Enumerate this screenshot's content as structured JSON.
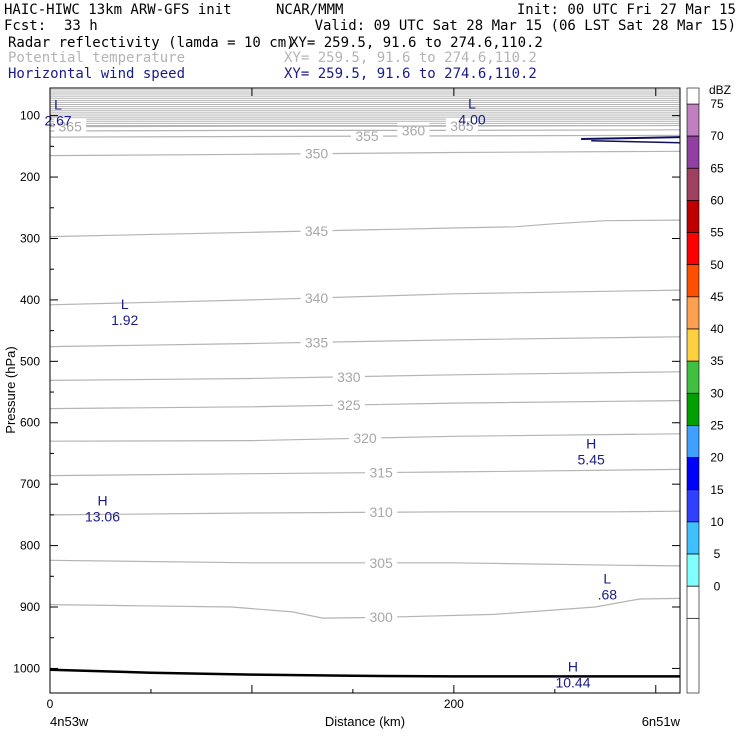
{
  "header": {
    "title": "HAIC-HIWC 13km ARW-GFS init",
    "org": "NCAR/MMM",
    "init": "Init: 00 UTC Fri 27 Mar 15",
    "fcst_label": "Fcst:",
    "fcst_value": "33 h",
    "valid": "Valid: 09 UTC Sat 28 Mar 15 (06 LST Sat 28 Mar 15)",
    "fields": [
      {
        "name": "Radar reflectivity (lamda = 10 cm)",
        "xy": "XY= 259.5, 91.6 to 274.6,110.2",
        "color": "#000000"
      },
      {
        "name": "Potential temperature",
        "xy": "XY= 259.5, 91.6 to 274.6,110.2",
        "color": "#b4b4b4"
      },
      {
        "name": "Horizontal wind speed",
        "xy": "XY= 259.5, 91.6 to 274.6,110.2",
        "color": "#1a1a8a"
      }
    ]
  },
  "chart_data": {
    "type": "line",
    "xlabel": "Distance (km)",
    "ylabel": "Pressure (hPa)",
    "xlim": [
      0,
      312
    ],
    "ylim": [
      1040,
      55
    ],
    "x_ticks": [
      0,
      100,
      200,
      300
    ],
    "x_tick_labels": [
      "0",
      "",
      "200",
      ""
    ],
    "y_ticks": [
      100,
      200,
      300,
      400,
      500,
      600,
      700,
      800,
      900,
      1000
    ],
    "x_end_labels": {
      "left": "4n53w",
      "right": "6n51w"
    },
    "theta_contours": [
      {
        "label": "300",
        "label_x": 164,
        "points": [
          [
            0,
            896
          ],
          [
            45,
            898
          ],
          [
            90,
            900
          ],
          [
            120,
            908
          ],
          [
            135,
            918
          ],
          [
            160,
            917
          ],
          [
            220,
            912
          ],
          [
            270,
            900
          ],
          [
            292,
            887
          ],
          [
            312,
            886
          ]
        ]
      },
      {
        "label": "305",
        "label_x": 164,
        "points": [
          [
            0,
            824
          ],
          [
            100,
            828
          ],
          [
            200,
            828
          ],
          [
            280,
            832
          ],
          [
            312,
            833
          ]
        ]
      },
      {
        "label": "310",
        "label_x": 164,
        "points": [
          [
            0,
            750
          ],
          [
            100,
            747
          ],
          [
            200,
            745
          ],
          [
            280,
            745
          ],
          [
            312,
            744
          ]
        ]
      },
      {
        "label": "315",
        "label_x": 164,
        "points": [
          [
            0,
            686
          ],
          [
            100,
            683
          ],
          [
            200,
            680
          ],
          [
            312,
            676
          ]
        ]
      },
      {
        "label": "320",
        "label_x": 156,
        "points": [
          [
            0,
            630
          ],
          [
            100,
            629
          ],
          [
            200,
            622
          ],
          [
            312,
            618
          ]
        ]
      },
      {
        "label": "325",
        "label_x": 148,
        "points": [
          [
            0,
            577
          ],
          [
            100,
            574
          ],
          [
            200,
            568
          ],
          [
            312,
            564
          ]
        ]
      },
      {
        "label": "330",
        "label_x": 148,
        "points": [
          [
            0,
            531
          ],
          [
            100,
            528
          ],
          [
            200,
            522
          ],
          [
            312,
            517
          ]
        ]
      },
      {
        "label": "335",
        "label_x": 132,
        "points": [
          [
            0,
            476
          ],
          [
            100,
            471
          ],
          [
            200,
            465
          ],
          [
            312,
            460
          ]
        ]
      },
      {
        "label": "340",
        "label_x": 132,
        "points": [
          [
            0,
            408
          ],
          [
            100,
            400
          ],
          [
            200,
            390
          ],
          [
            312,
            384
          ]
        ]
      },
      {
        "label": "345",
        "label_x": 132,
        "points": [
          [
            0,
            297
          ],
          [
            100,
            290
          ],
          [
            200,
            283
          ],
          [
            230,
            281
          ],
          [
            250,
            276
          ],
          [
            275,
            271
          ],
          [
            312,
            270
          ]
        ]
      },
      {
        "label": "350",
        "label_x": 132,
        "points": [
          [
            0,
            165
          ],
          [
            100,
            163
          ],
          [
            200,
            160
          ],
          [
            312,
            158
          ]
        ]
      },
      {
        "label": "355",
        "label_x": 157,
        "points": [
          [
            0,
            135
          ],
          [
            100,
            134
          ],
          [
            200,
            133
          ],
          [
            312,
            132
          ]
        ]
      },
      {
        "label": "360",
        "label_x": 180,
        "points": [
          [
            0,
            125
          ],
          [
            100,
            124
          ],
          [
            200,
            124
          ],
          [
            312,
            123
          ]
        ]
      },
      {
        "label": "365",
        "label_x": 204,
        "points": [
          [
            0,
            118
          ],
          [
            100,
            117
          ],
          [
            200,
            117
          ],
          [
            312,
            116
          ]
        ]
      },
      {
        "label": "365",
        "label_x": 10,
        "points": []
      }
    ],
    "upper_dense_contours": {
      "from": 58,
      "to": 116,
      "count": 18
    },
    "wind_speed_extrema": [
      {
        "type": "L",
        "value": "2.67",
        "x": 4,
        "p": 90
      },
      {
        "type": "L",
        "value": "4.00",
        "x": 209,
        "p": 88
      },
      {
        "type": "L",
        "value": "1.92",
        "x": 37,
        "p": 415
      },
      {
        "type": "H",
        "value": "5.45",
        "x": 268,
        "p": 642
      },
      {
        "type": "H",
        "value": "13.06",
        "x": 26,
        "p": 735
      },
      {
        "type": "L",
        "value": ".68",
        "x": 276,
        "p": 862
      },
      {
        "type": "H",
        "value": "10.44",
        "x": 259,
        "p": 1005
      }
    ],
    "wind_speed_line": {
      "points": [
        [
          263,
          138
        ],
        [
          280,
          137
        ],
        [
          312,
          135
        ]
      ]
    },
    "terrain_line": {
      "points": [
        [
          0,
          1002
        ],
        [
          50,
          1007
        ],
        [
          100,
          1010
        ],
        [
          150,
          1012
        ],
        [
          200,
          1013
        ],
        [
          312,
          1013
        ]
      ]
    },
    "reflectivity_scale": {
      "label": "dBZ",
      "levels": [
        "75",
        "70",
        "65",
        "60",
        "55",
        "50",
        "45",
        "40",
        "35",
        "30",
        "25",
        "20",
        "15",
        "10",
        "5",
        "0"
      ],
      "colors": [
        "#c080c0",
        "#9040a0",
        "#a04060",
        "#c00000",
        "#ff0000",
        "#ff5000",
        "#ffa050",
        "#ffd040",
        "#40c040",
        "#00a000",
        "#40a0ff",
        "#0000ff",
        "#3040ff",
        "#40c0ff",
        "#80ffff",
        "#ffffff"
      ]
    }
  }
}
